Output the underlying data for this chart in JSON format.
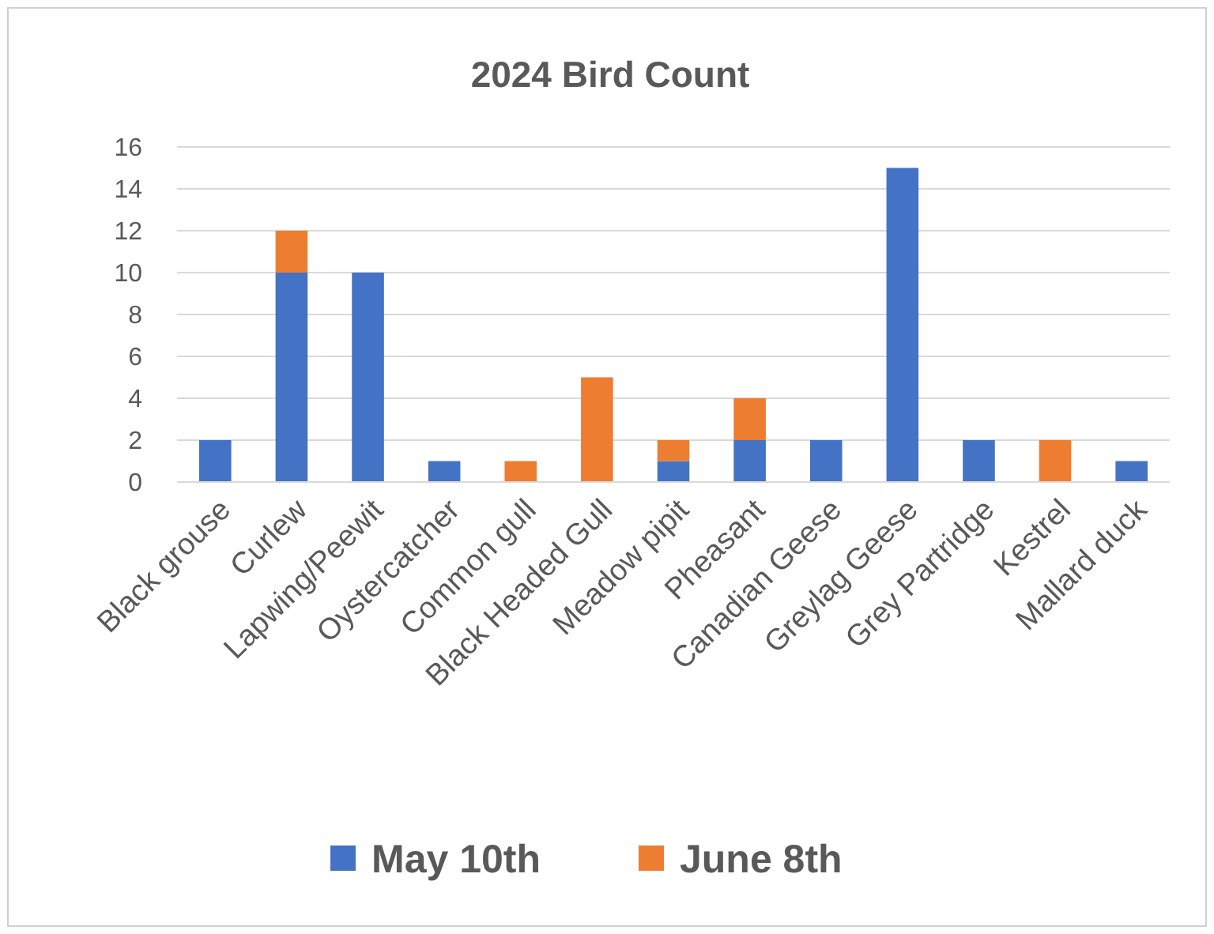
{
  "chart_data": {
    "type": "bar",
    "title": "2024 Bird Count",
    "stacked": true,
    "categories": [
      "Black grouse",
      "Curlew",
      "Lapwing/Peewit",
      "Oystercatcher",
      "Common gull",
      "Black Headed Gull",
      "Meadow pipit",
      "Pheasant",
      "Canadian Geese",
      "Greylag Geese",
      "Grey Partridge",
      "Kestrel",
      "Mallard duck"
    ],
    "series": [
      {
        "name": "May 10th",
        "color": "#4472c4",
        "values": [
          2,
          10,
          10,
          1,
          null,
          null,
          1,
          2,
          2,
          15,
          2,
          null,
          1
        ]
      },
      {
        "name": "June 8th",
        "color": "#ed7d31",
        "values": [
          null,
          2,
          null,
          null,
          1,
          5,
          1,
          2,
          null,
          null,
          null,
          2,
          null
        ]
      }
    ],
    "ylim": [
      0,
      16
    ],
    "yticks": [
      0,
      2,
      4,
      6,
      8,
      10,
      12,
      14,
      16
    ],
    "grid": "y",
    "legend": "bottom"
  }
}
